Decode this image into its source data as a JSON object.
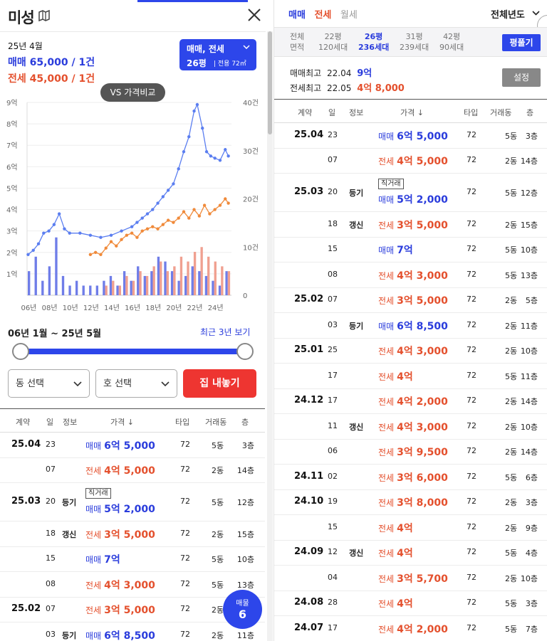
{
  "left": {
    "title": "미성",
    "summary": {
      "date": "25년 4월",
      "sale": "매매 65,000 / 1건",
      "jeonse": "전세 45,000 / 1건"
    },
    "filter": {
      "line1": "매매, 전세",
      "line2": "26평",
      "line3": "| 전용 72㎡"
    },
    "vs_label": "VS 가격비교",
    "range_text": "06년 1월 ~ 25년 5월",
    "recent_label": "최근 3년 보기",
    "dong_select": "동 선택",
    "ho_select": "호 선택",
    "sell_button": "집 내놓기",
    "fab": {
      "label": "매물",
      "count": "6"
    }
  },
  "table_headers": [
    "계약",
    "일",
    "정보",
    "가격 ↓",
    "타입",
    "거래동",
    "층"
  ],
  "left_rows": [
    {
      "month": "25.04",
      "day": "23",
      "info": "",
      "tag": "",
      "kind": "매매",
      "price": "6억 5,000",
      "type": "72",
      "dong": "5동",
      "floor": "3층"
    },
    {
      "month": "",
      "day": "07",
      "info": "",
      "tag": "",
      "kind": "전세",
      "price": "4억 5,000",
      "type": "72",
      "dong": "2동",
      "floor": "14층"
    },
    {
      "month": "25.03",
      "day": "20",
      "info": "등기",
      "tag": "직거래",
      "kind": "매매",
      "price": "5억 2,000",
      "type": "72",
      "dong": "5동",
      "floor": "12층"
    },
    {
      "month": "",
      "day": "18",
      "info": "갱신",
      "tag": "",
      "kind": "전세",
      "price": "3억 5,000",
      "type": "72",
      "dong": "2동",
      "floor": "15층"
    },
    {
      "month": "",
      "day": "15",
      "info": "",
      "tag": "",
      "kind": "매매",
      "price": "7억",
      "type": "72",
      "dong": "5동",
      "floor": "10층"
    },
    {
      "month": "",
      "day": "08",
      "info": "",
      "tag": "",
      "kind": "전세",
      "price": "4억 3,000",
      "type": "72",
      "dong": "5동",
      "floor": "13층"
    },
    {
      "month": "25.02",
      "day": "07",
      "info": "",
      "tag": "",
      "kind": "전세",
      "price": "3억 5,000",
      "type": "72",
      "dong": "2동",
      "floor": "5층"
    },
    {
      "month": "",
      "day": "03",
      "info": "등기",
      "tag": "",
      "kind": "매매",
      "price": "6억 8,500",
      "type": "72",
      "dong": "2동",
      "floor": "11층"
    }
  ],
  "right": {
    "tabs": [
      "매매",
      "전세",
      "월세"
    ],
    "year_select": "전체년도",
    "area_label": [
      "전체",
      "면적"
    ],
    "areas": [
      {
        "p": "22평",
        "h": "120세대"
      },
      {
        "p": "26평",
        "h": "236세대"
      },
      {
        "p": "31평",
        "h": "239세대"
      },
      {
        "p": "42평",
        "h": "90세대"
      }
    ],
    "pyeong_button": "평풀기",
    "max_sale": {
      "label": "매매최고",
      "date": "22.04",
      "value": "9억"
    },
    "max_jeonse": {
      "label": "전세최고",
      "date": "22.05",
      "value": "4억 8,000"
    },
    "settings_button": "설정"
  },
  "right_rows": [
    {
      "month": "25.04",
      "day": "23",
      "info": "",
      "tag": "",
      "kind": "매매",
      "price": "6억 5,000",
      "type": "72",
      "dong": "5동",
      "floor": "3층"
    },
    {
      "month": "",
      "day": "07",
      "info": "",
      "tag": "",
      "kind": "전세",
      "price": "4억 5,000",
      "type": "72",
      "dong": "2동",
      "floor": "14층"
    },
    {
      "month": "25.03",
      "day": "20",
      "info": "등기",
      "tag": "직거래",
      "kind": "매매",
      "price": "5억 2,000",
      "type": "72",
      "dong": "5동",
      "floor": "12층"
    },
    {
      "month": "",
      "day": "18",
      "info": "갱신",
      "tag": "",
      "kind": "전세",
      "price": "3억 5,000",
      "type": "72",
      "dong": "2동",
      "floor": "15층"
    },
    {
      "month": "",
      "day": "15",
      "info": "",
      "tag": "",
      "kind": "매매",
      "price": "7억",
      "type": "72",
      "dong": "5동",
      "floor": "10층"
    },
    {
      "month": "",
      "day": "08",
      "info": "",
      "tag": "",
      "kind": "전세",
      "price": "4억 3,000",
      "type": "72",
      "dong": "5동",
      "floor": "13층"
    },
    {
      "month": "25.02",
      "day": "07",
      "info": "",
      "tag": "",
      "kind": "전세",
      "price": "3억 5,000",
      "type": "72",
      "dong": "2동",
      "floor": "5층"
    },
    {
      "month": "",
      "day": "03",
      "info": "등기",
      "tag": "",
      "kind": "매매",
      "price": "6억 8,500",
      "type": "72",
      "dong": "2동",
      "floor": "11층"
    },
    {
      "month": "25.01",
      "day": "25",
      "info": "",
      "tag": "",
      "kind": "전세",
      "price": "4억 3,000",
      "type": "72",
      "dong": "2동",
      "floor": "10층"
    },
    {
      "month": "",
      "day": "17",
      "info": "",
      "tag": "",
      "kind": "전세",
      "price": "4억",
      "type": "72",
      "dong": "5동",
      "floor": "11층"
    },
    {
      "month": "24.12",
      "day": "17",
      "info": "",
      "tag": "",
      "kind": "전세",
      "price": "4억 2,000",
      "type": "72",
      "dong": "2동",
      "floor": "14층"
    },
    {
      "month": "",
      "day": "11",
      "info": "갱신",
      "tag": "",
      "kind": "전세",
      "price": "4억 3,000",
      "type": "72",
      "dong": "2동",
      "floor": "10층"
    },
    {
      "month": "",
      "day": "06",
      "info": "",
      "tag": "",
      "kind": "전세",
      "price": "3억 9,500",
      "type": "72",
      "dong": "2동",
      "floor": "14층"
    },
    {
      "month": "24.11",
      "day": "02",
      "info": "",
      "tag": "",
      "kind": "전세",
      "price": "3억 6,000",
      "type": "72",
      "dong": "5동",
      "floor": "6층"
    },
    {
      "month": "24.10",
      "day": "19",
      "info": "",
      "tag": "",
      "kind": "전세",
      "price": "3억 8,000",
      "type": "72",
      "dong": "2동",
      "floor": "3층"
    },
    {
      "month": "",
      "day": "15",
      "info": "",
      "tag": "",
      "kind": "전세",
      "price": "4억",
      "type": "72",
      "dong": "2동",
      "floor": "9층"
    },
    {
      "month": "24.09",
      "day": "12",
      "info": "갱신",
      "tag": "",
      "kind": "전세",
      "price": "4억",
      "type": "72",
      "dong": "5동",
      "floor": "4층"
    },
    {
      "month": "",
      "day": "04",
      "info": "",
      "tag": "",
      "kind": "전세",
      "price": "3억 5,700",
      "type": "72",
      "dong": "2동",
      "floor": "10층"
    },
    {
      "month": "24.08",
      "day": "28",
      "info": "",
      "tag": "",
      "kind": "전세",
      "price": "4억",
      "type": "72",
      "dong": "5동",
      "floor": "3층"
    },
    {
      "month": "24.07",
      "day": "17",
      "info": "",
      "tag": "",
      "kind": "전세",
      "price": "4억 2,000",
      "type": "72",
      "dong": "5동",
      "floor": "7층"
    }
  ],
  "chart_data": {
    "type": "line",
    "x_ticks": [
      "06년",
      "08년",
      "10년",
      "12년",
      "14년",
      "16년",
      "18년",
      "20년",
      "22년",
      "24년"
    ],
    "y_left_ticks": [
      "1억",
      "2억",
      "3억",
      "4억",
      "5억",
      "6억",
      "7억",
      "8억",
      "9억"
    ],
    "y_right_ticks": [
      "0",
      "10건",
      "20건",
      "30건",
      "40건"
    ],
    "y_left_range": [
      0,
      9
    ],
    "y_right_range": [
      0,
      40
    ],
    "series": [
      {
        "name": "매매",
        "color": "#5b7ef0",
        "x": [
          2006.0,
          2006.5,
          2007.0,
          2007.5,
          2008.0,
          2008.5,
          2009.0,
          2009.5,
          2010.0,
          2011.0,
          2012.0,
          2013.0,
          2014.0,
          2015.0,
          2016.0,
          2016.5,
          2017.0,
          2017.5,
          2018.0,
          2018.5,
          2019.0,
          2019.5,
          2020.0,
          2020.5,
          2021.0,
          2021.5,
          2022.0,
          2022.3,
          2022.8,
          2023.2,
          2023.6,
          2024.0,
          2024.5,
          2025.0,
          2025.3
        ],
        "y": [
          1.9,
          2.1,
          2.4,
          2.9,
          3.0,
          3.3,
          3.8,
          3.1,
          2.9,
          2.9,
          2.8,
          2.7,
          2.8,
          3.0,
          3.2,
          3.4,
          3.6,
          3.8,
          4.0,
          4.3,
          4.6,
          4.9,
          5.2,
          5.9,
          6.7,
          7.4,
          8.6,
          8.9,
          7.8,
          6.7,
          6.5,
          6.4,
          6.3,
          6.8,
          6.5
        ]
      },
      {
        "name": "전세",
        "color": "#f08a3a",
        "x": [
          2012.0,
          2012.5,
          2013.0,
          2013.5,
          2014.0,
          2014.5,
          2015.0,
          2015.5,
          2016.0,
          2016.5,
          2017.0,
          2017.5,
          2018.0,
          2018.5,
          2019.0,
          2019.5,
          2020.0,
          2020.5,
          2021.0,
          2021.5,
          2022.0,
          2022.5,
          2023.0,
          2023.5,
          2024.0,
          2024.5,
          2025.0,
          2025.3
        ],
        "y": [
          1.9,
          2.0,
          1.9,
          2.2,
          2.5,
          2.3,
          2.6,
          2.8,
          2.9,
          2.7,
          3.0,
          3.1,
          3.2,
          3.1,
          3.3,
          3.5,
          3.4,
          3.6,
          3.9,
          3.6,
          4.0,
          3.7,
          4.2,
          3.8,
          4.0,
          4.2,
          4.5,
          4.3
        ]
      }
    ],
    "volume_sale": [
      5,
      8,
      3,
      6,
      12,
      4,
      2,
      3,
      2,
      2,
      2,
      3,
      4,
      2,
      5,
      3,
      6,
      4,
      5,
      8,
      7,
      5,
      3,
      4,
      6,
      5,
      4,
      3,
      2,
      5
    ],
    "volume_jeonse": [
      0,
      0,
      0,
      0,
      0,
      0,
      0,
      0,
      0,
      0,
      0,
      2,
      3,
      2,
      4,
      3,
      5,
      4,
      6,
      7,
      5,
      6,
      8,
      7,
      9,
      10,
      8,
      7,
      6,
      5
    ]
  }
}
